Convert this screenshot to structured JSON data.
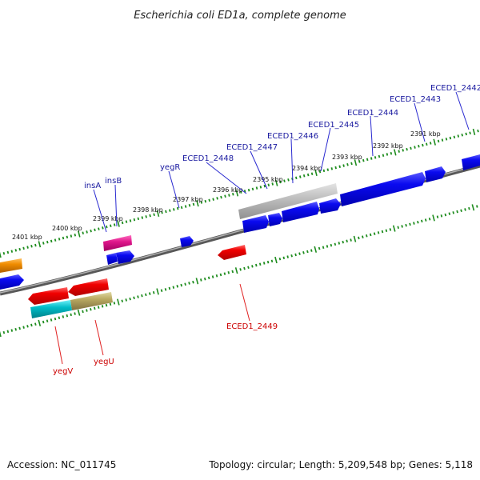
{
  "title": "Escherichia coli ED1a, complete genome",
  "footer": {
    "accession": "Accession: NC_011745",
    "summary": "Topology: circular; Length: 5,209,548 bp; Genes: 5,118"
  },
  "colors": {
    "backbone": "#808080",
    "ticks": "#1e8c1e",
    "forward_gene": "#0a0af0",
    "reverse_gene": "#f00000",
    "pseudo_gene": "#b8b8b8",
    "insertion": "#e0178c",
    "orange_gene": "#f08c00",
    "cyan_gene": "#00bcc8",
    "olive_gene": "#b8a860"
  },
  "ticks": [
    {
      "label": "2391 kbp"
    },
    {
      "label": "2392 kbp"
    },
    {
      "label": "2393 kbp"
    },
    {
      "label": "2394 kbp"
    },
    {
      "label": "2395 kbp"
    },
    {
      "label": "2396 kbp"
    },
    {
      "label": "2397 kbp"
    },
    {
      "label": "2398 kbp"
    },
    {
      "label": "2399 kbp"
    },
    {
      "label": "2400 kbp"
    },
    {
      "label": "2401 kbp"
    }
  ],
  "gene_labels": [
    {
      "label": "ECED1_2442",
      "strand": "forward"
    },
    {
      "label": "ECED1_2443",
      "strand": "forward"
    },
    {
      "label": "ECED1_2444",
      "strand": "forward"
    },
    {
      "label": "ECED1_2445",
      "strand": "forward"
    },
    {
      "label": "ECED1_2446",
      "strand": "forward"
    },
    {
      "label": "ECED1_2447",
      "strand": "forward"
    },
    {
      "label": "ECED1_2448",
      "strand": "forward"
    },
    {
      "label": "yegR",
      "strand": "forward"
    },
    {
      "label": "insB",
      "strand": "forward"
    },
    {
      "label": "insA",
      "strand": "forward"
    },
    {
      "label": "ECED1_2449",
      "strand": "reverse"
    },
    {
      "label": "yegU",
      "strand": "reverse"
    },
    {
      "label": "yegV",
      "strand": "reverse"
    }
  ]
}
